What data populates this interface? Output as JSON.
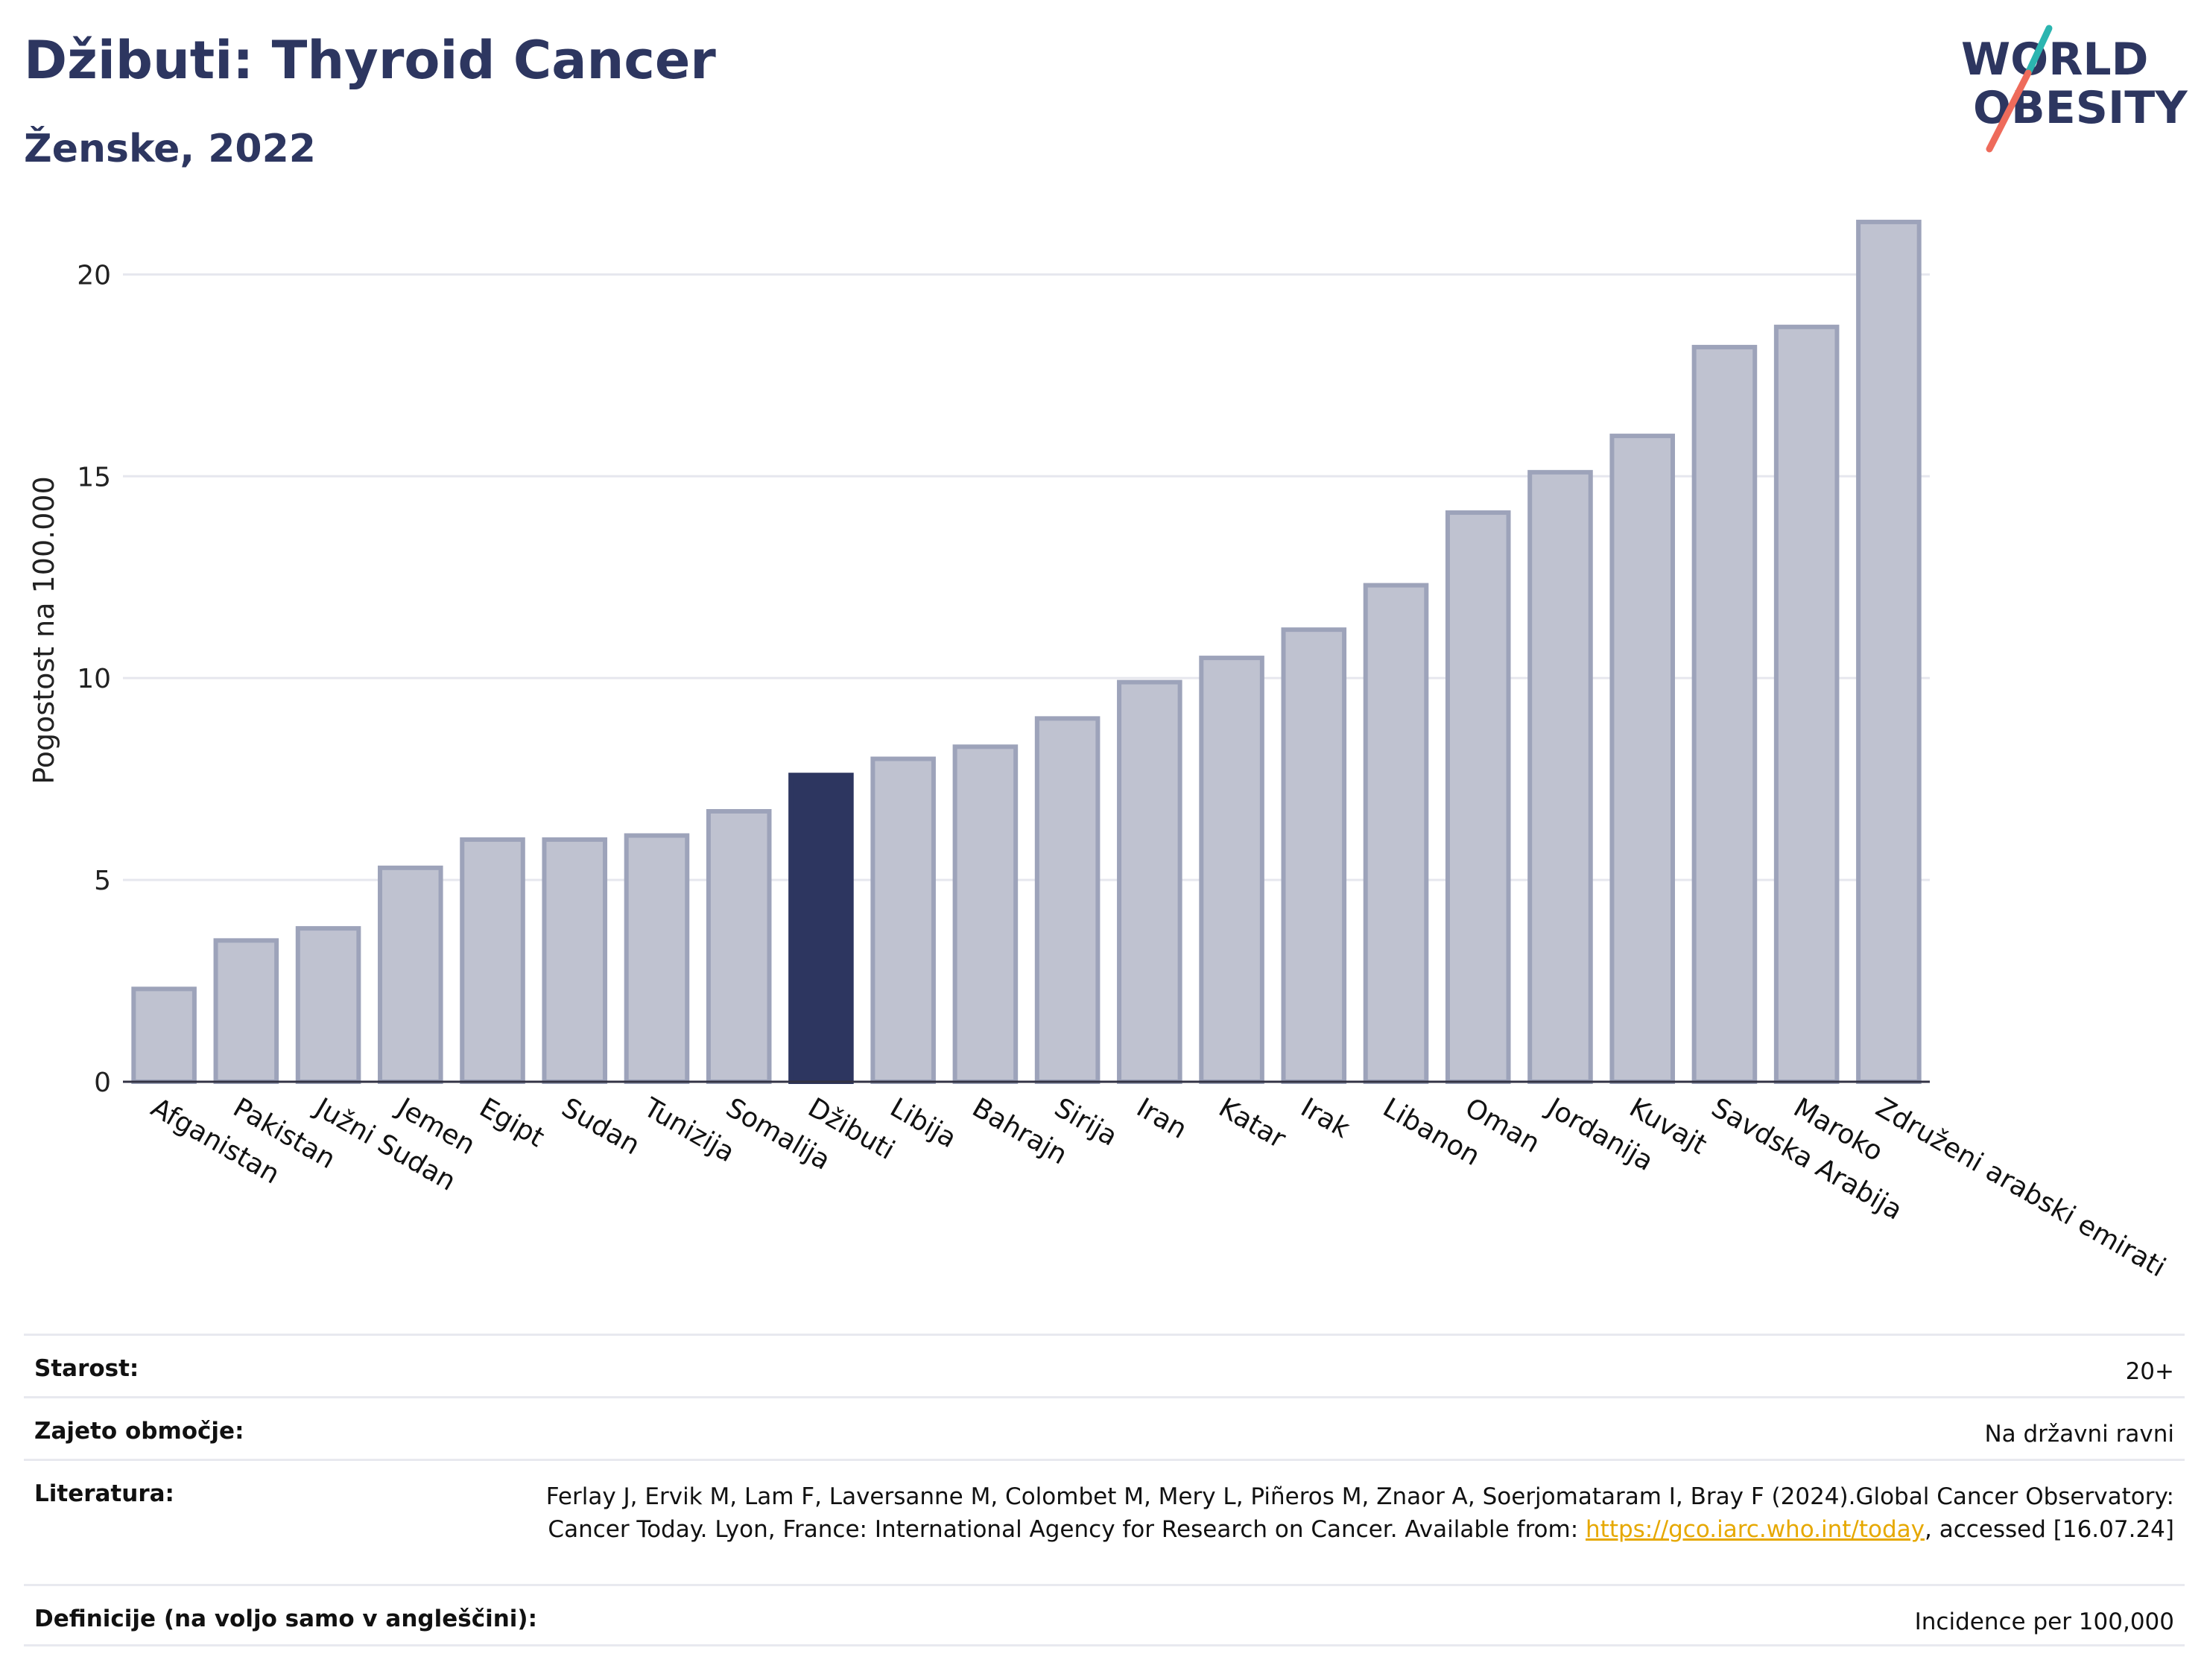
{
  "header": {
    "title": "Džibuti: Thyroid Cancer",
    "subtitle": "Ženske, 2022",
    "logo_line1": "WORLD",
    "logo_line2": "OBESITY"
  },
  "chart_data": {
    "type": "bar",
    "title": "Džibuti: Thyroid Cancer",
    "subtitle": "Ženske, 2022",
    "xlabel": "",
    "ylabel": "Pogostost na 100.000",
    "ylim": [
      0,
      22
    ],
    "yticks": [
      0,
      5,
      10,
      15,
      20
    ],
    "grid": true,
    "highlight": "Džibuti",
    "colors": {
      "bar": "#bfc2d0",
      "bar_border": "#9da3ba",
      "highlight": "#2d3660"
    },
    "categories": [
      "Afganistan",
      "Pakistan",
      "Južni Sudan",
      "Jemen",
      "Egipt",
      "Sudan",
      "Tunizija",
      "Somalija",
      "Džibuti",
      "Libija",
      "Bahrajn",
      "Sirija",
      "Iran",
      "Katar",
      "Irak",
      "Libanon",
      "Oman",
      "Jordanija",
      "Kuvajt",
      "Savdska Arabija",
      "Maroko",
      "Združeni arabski emirati"
    ],
    "values": [
      2.3,
      3.5,
      3.8,
      5.3,
      6.0,
      6.0,
      6.1,
      6.7,
      7.6,
      8.0,
      8.3,
      9.0,
      9.9,
      10.5,
      11.2,
      12.3,
      14.1,
      15.1,
      16.0,
      18.2,
      18.7,
      21.3
    ]
  },
  "meta": [
    {
      "label": "Starost:",
      "value": "20+"
    },
    {
      "label": "Zajeto območje:",
      "value": "Na državni ravni"
    },
    {
      "label": "Literatura:",
      "value": "Ferlay J, Ervik M, Lam F, Laversanne M, Colombet M, Mery L, Piñeros M, Znaor A, Soerjomataram I, Bray F (2024).Global Cancer Observatory: Cancer Today. Lyon, France: International Agency for Research on Cancer. Available from: ",
      "link": "https://gco.iarc.who.int/today",
      "suffix": ", accessed [16.07.24]"
    },
    {
      "label": "Definicije (na voljo samo v angleščini):",
      "value": "Incidence per 100,000"
    }
  ]
}
